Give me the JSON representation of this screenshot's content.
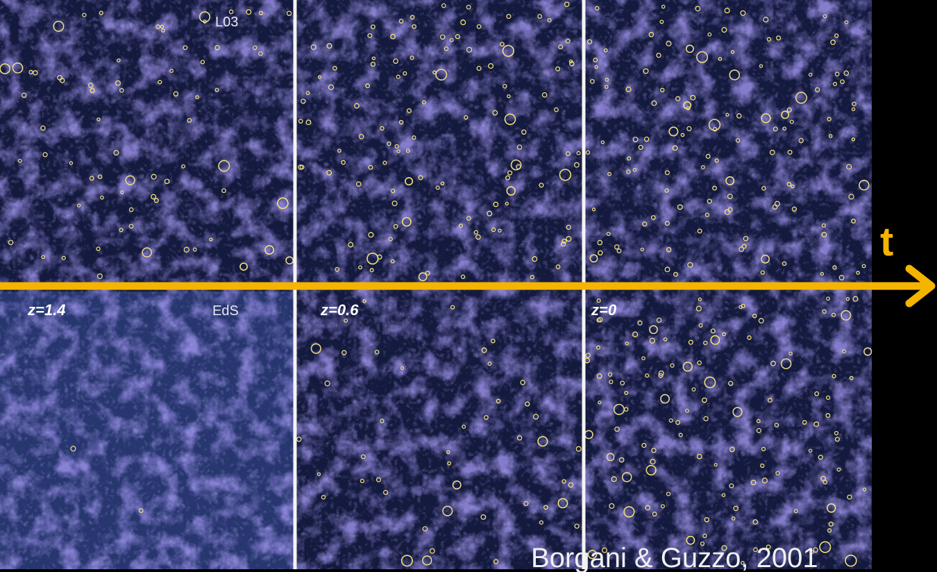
{
  "figure": {
    "top_row": {
      "model": "L03"
    },
    "bottom_row": {
      "model": "EdS"
    },
    "redshifts": [
      "z=1.4",
      "z=0.6",
      "z=0"
    ]
  },
  "axis_label": "t",
  "credit": "Borgani & Guzzo, 2001"
}
